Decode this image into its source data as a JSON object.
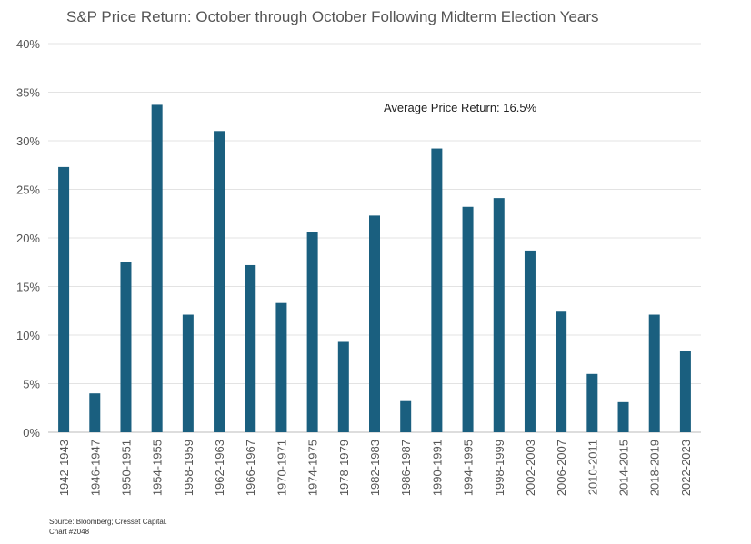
{
  "chart_data": {
    "type": "bar",
    "title": "S&P Price Return: October through October Following Midterm Election Years",
    "categories": [
      "1942-1943",
      "1946-1947",
      "1950-1951",
      "1954-1955",
      "1958-1959",
      "1962-1963",
      "1966-1967",
      "1970-1971",
      "1974-1975",
      "1978-1979",
      "1982-1983",
      "1986-1987",
      "1990-1991",
      "1994-1995",
      "1998-1999",
      "2002-2003",
      "2006-2007",
      "2010-2011",
      "2014-2015",
      "2018-2019",
      "2022-2023"
    ],
    "values": [
      27.3,
      4.0,
      17.5,
      33.7,
      12.1,
      31.0,
      17.2,
      13.3,
      20.6,
      9.3,
      22.3,
      3.3,
      29.2,
      23.2,
      24.1,
      18.7,
      12.5,
      6.0,
      3.1,
      12.1,
      8.4
    ],
    "ylim": [
      0,
      40
    ],
    "yticks": [
      "0%",
      "5%",
      "10%",
      "15%",
      "20%",
      "25%",
      "30%",
      "35%",
      "40%"
    ],
    "grid": true,
    "annotation": "Average Price Return: 16.5%",
    "bar_color": "#1a5f7f"
  },
  "source": "Source: Bloomberg; Cresset Capital.",
  "chart_id": "Chart #2048"
}
